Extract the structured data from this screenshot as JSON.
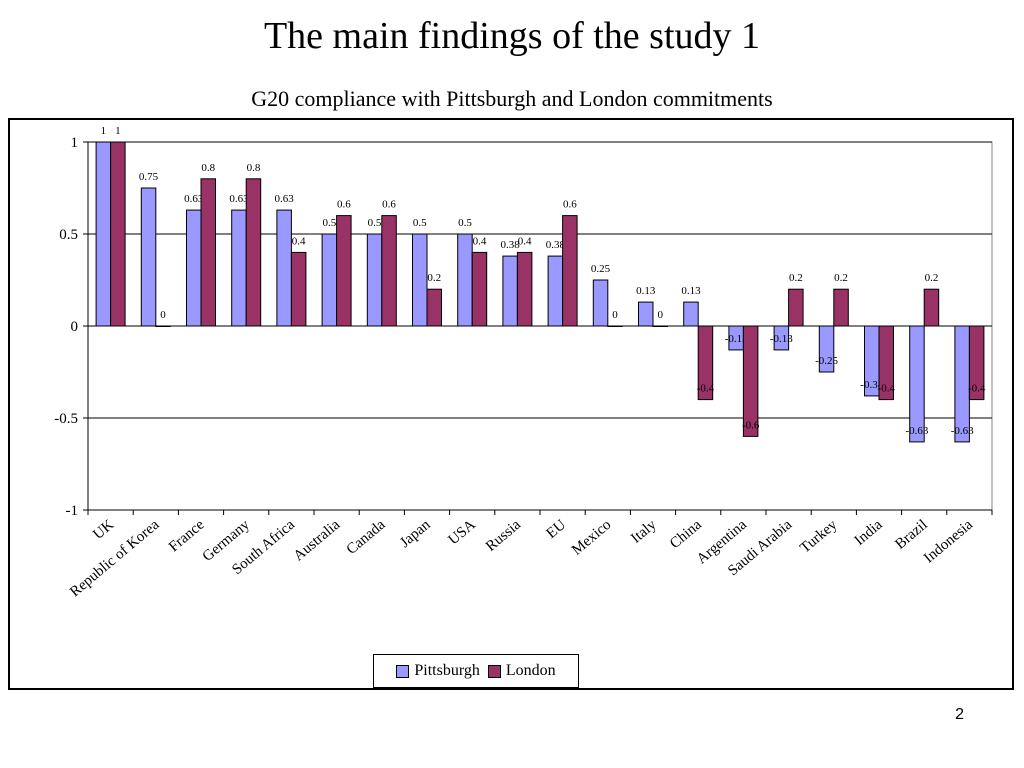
{
  "slide": {
    "title": "The main findings of the study 1",
    "page_number": "2"
  },
  "chart_data": {
    "type": "bar",
    "title": "G20 compliance with Pittsburgh and London commitments",
    "xlabel": "",
    "ylabel": "",
    "ylim": [
      -1,
      1
    ],
    "yticks": [
      1,
      0.5,
      0,
      -0.5,
      -1
    ],
    "grid": true,
    "legend_position": "bottom",
    "categories": [
      "UK",
      "Republic of Korea",
      "France",
      "Germany",
      "South Africa",
      "Australia",
      "Canada",
      "Japan",
      "USA",
      "Russia",
      "EU",
      "Mexico",
      "Italy",
      "China",
      "Argentina",
      "Saudi Arabia",
      "Turkey",
      "India",
      "Brazil",
      "Indonesia"
    ],
    "series": [
      {
        "name": "Pittsburgh",
        "color": "#9999ff",
        "values": [
          1,
          0.75,
          0.63,
          0.63,
          0.63,
          0.5,
          0.5,
          0.5,
          0.5,
          0.38,
          0.38,
          0.25,
          0.13,
          0.13,
          -0.13,
          -0.13,
          -0.25,
          -0.38,
          -0.63,
          -0.63
        ],
        "labels": [
          "1",
          "0.75",
          "0.63",
          "0.63",
          "0.63",
          "0.5",
          "0.5",
          "0.5",
          "0.5",
          "0.38",
          "0.38",
          "0.25",
          "0.13",
          "0.13",
          "-0.13",
          "-0.13",
          "-0.25",
          "-0.38",
          "-0.63",
          "-0.63"
        ]
      },
      {
        "name": "London",
        "color": "#993366",
        "values": [
          1,
          0,
          0.8,
          0.8,
          0.4,
          0.6,
          0.6,
          0.2,
          0.4,
          0.4,
          0.6,
          0,
          0,
          -0.4,
          -0.6,
          0.2,
          0.2,
          -0.4,
          0.2,
          -0.4
        ],
        "labels": [
          "1",
          "0",
          "0.8",
          "0.8",
          "0.4",
          "0.6",
          "0.6",
          "0.2",
          "0.4",
          "0.4",
          "0.6",
          "0",
          "0",
          "-0.4",
          "-0.6",
          "0.2",
          "0.2",
          "-0.4",
          "0.2",
          "-0.4"
        ]
      }
    ]
  }
}
